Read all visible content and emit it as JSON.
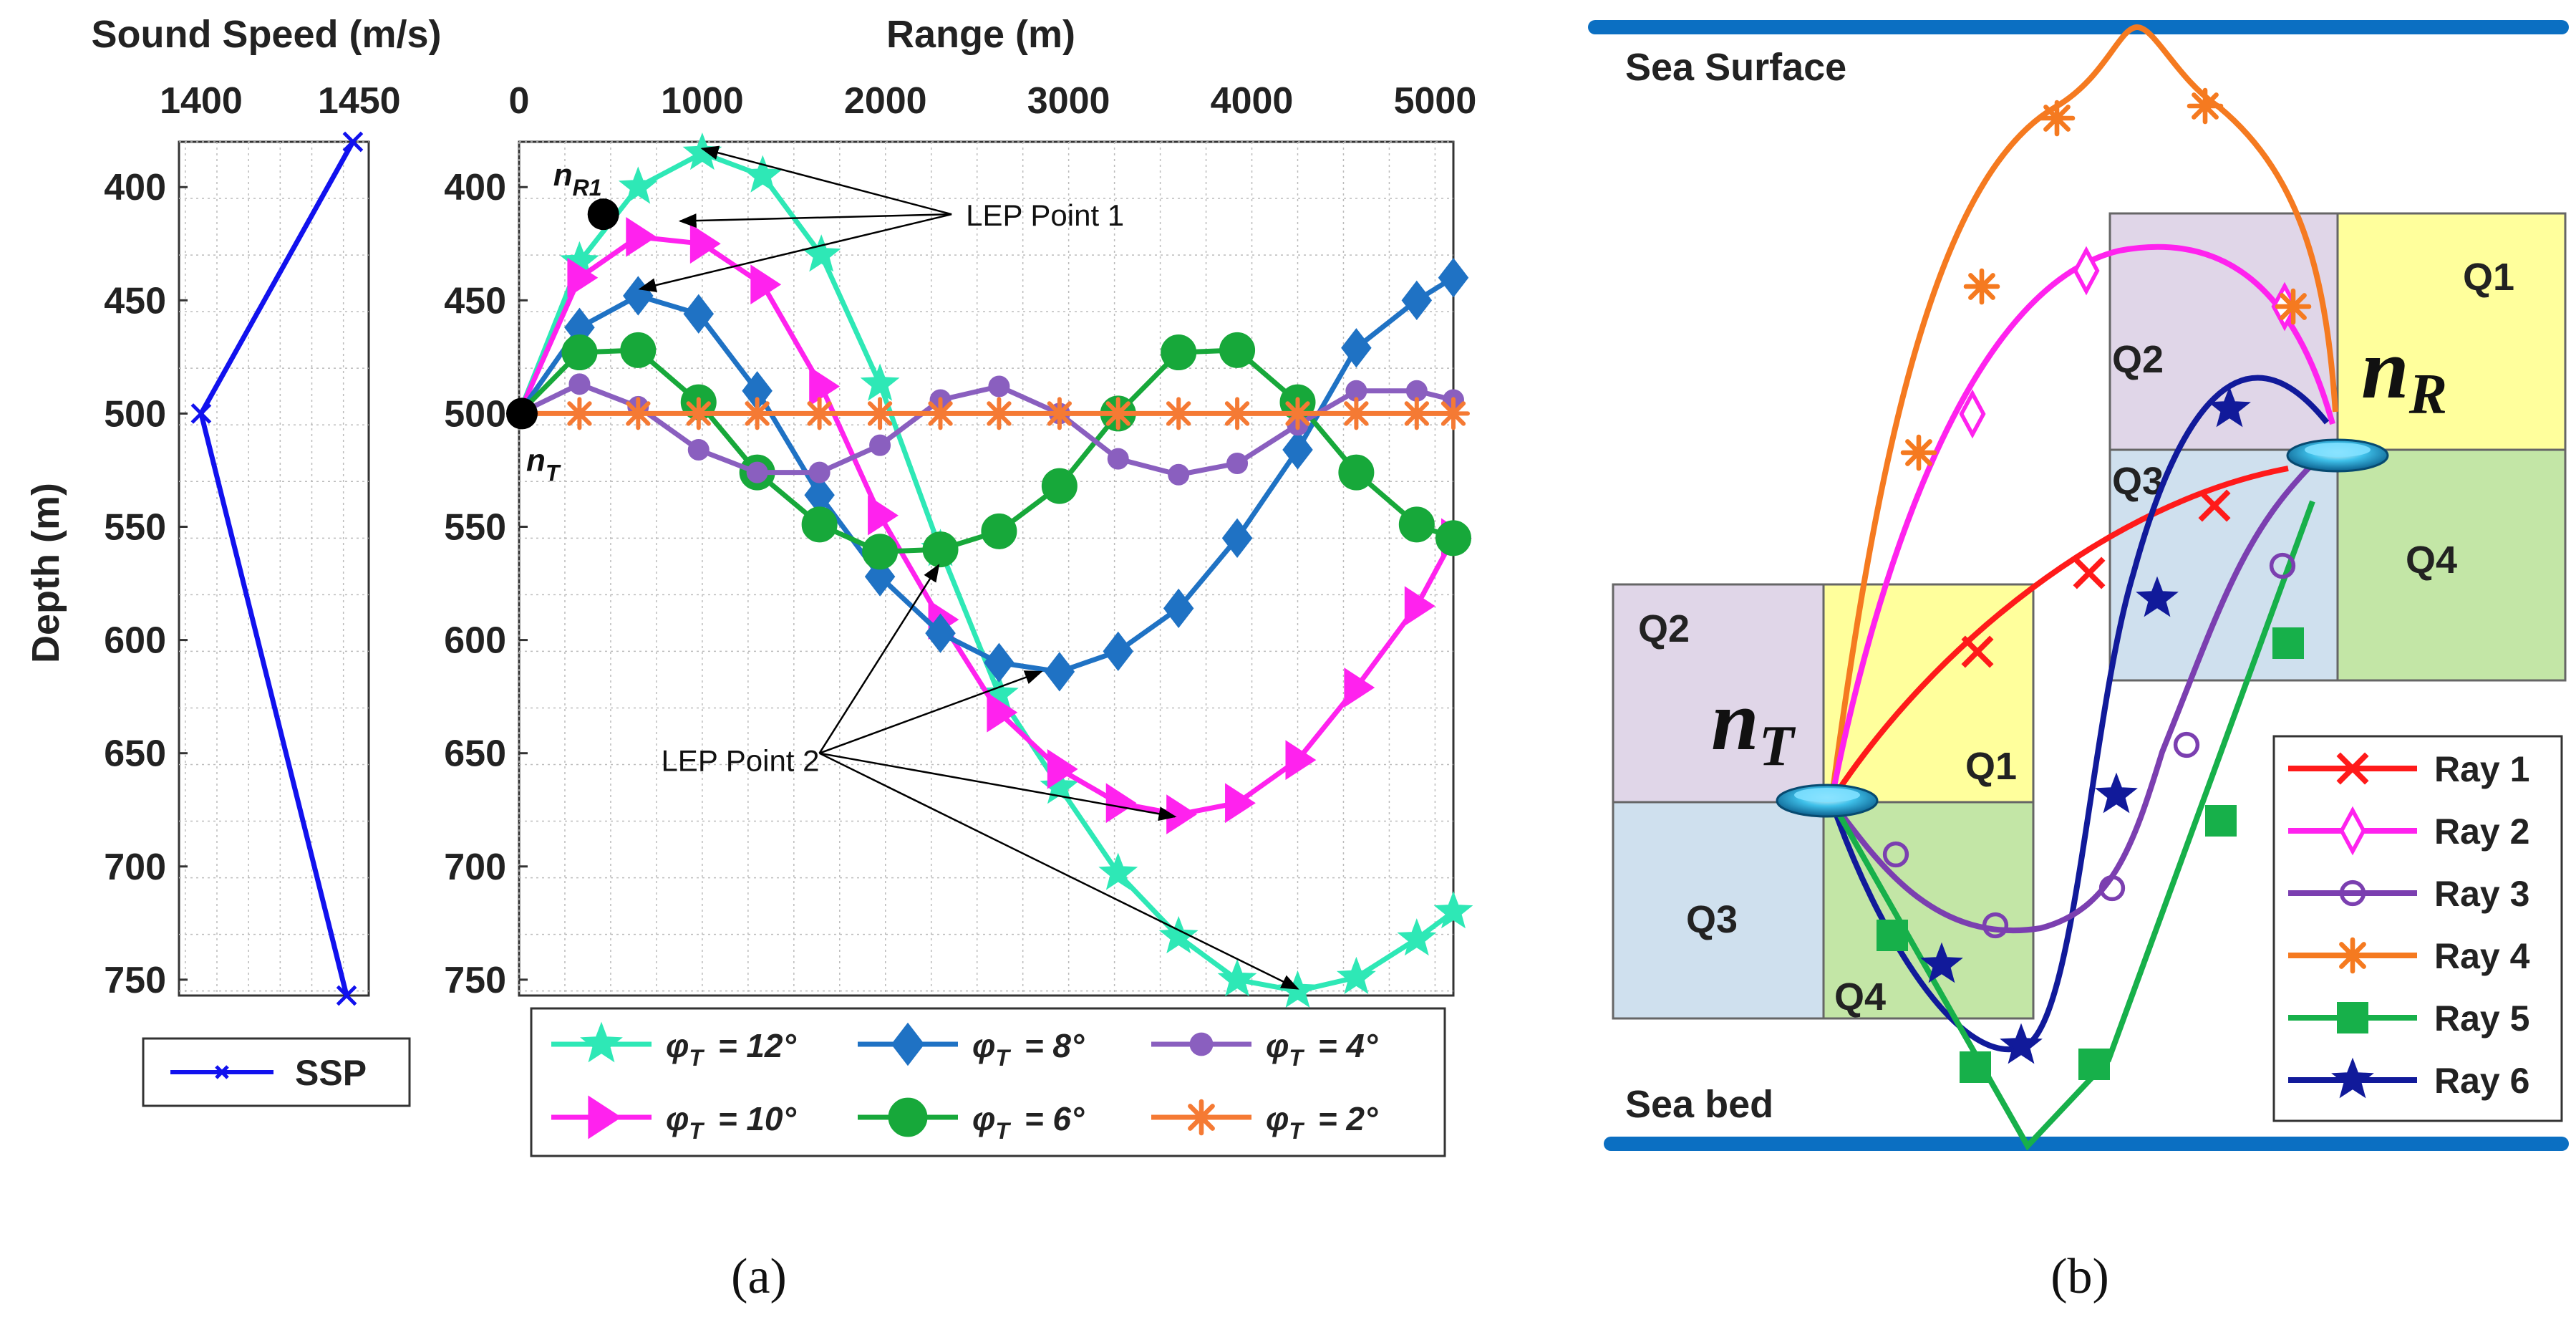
{
  "panel_a": {
    "caption": "(a)",
    "legend_label_prefix": "φ",
    "legend_label_sub": "T",
    "ssp_legend": "SSP",
    "chart_data": [
      {
        "type": "line",
        "name": "sound-speed-profile",
        "title": "Sound Speed (m/s)",
        "xlabel": "Sound Speed (m/s)",
        "ylabel": "Depth (m)",
        "xlim": [
          1393,
          1453
        ],
        "ylim": [
          757,
          380
        ],
        "x_ticks": [
          "1400",
          "1450"
        ],
        "y_ticks": [
          "400",
          "450",
          "500",
          "550",
          "600",
          "650",
          "700",
          "750"
        ],
        "grid": true,
        "legend": "below",
        "series": [
          {
            "name": "SSP",
            "color": "#1111ee",
            "marker": "x",
            "points": [
              [
                1448,
                380
              ],
              [
                1400,
                500
              ],
              [
                1446,
                757
              ]
            ]
          }
        ]
      },
      {
        "type": "line",
        "name": "ray-trajectories",
        "title": "Range (m)",
        "xlabel": "Range (m)",
        "ylabel": "Depth (m)",
        "xlim": [
          0,
          5100
        ],
        "ylim": [
          757,
          380
        ],
        "x_ticks": [
          "0",
          "1000",
          "2000",
          "3000",
          "4000",
          "5000"
        ],
        "y_ticks": [
          "400",
          "450",
          "500",
          "550",
          "600",
          "650",
          "700",
          "750"
        ],
        "grid": true,
        "legend": "below",
        "legend_text": [
          "= 12°",
          "= 8°",
          "= 4°",
          "= 10°",
          "= 6°",
          "= 2°"
        ],
        "series": [
          {
            "name": "= 12°",
            "angle_deg": 12,
            "color": "#2ee8b6",
            "marker": "star",
            "points": [
              [
                0,
                500
              ],
              [
                330,
                433
              ],
              [
                650,
                400
              ],
              [
                1000,
                385
              ],
              [
                1330,
                395
              ],
              [
                1650,
                430
              ],
              [
                1970,
                487
              ],
              [
                2300,
                560
              ],
              [
                2620,
                624
              ],
              [
                2950,
                665
              ],
              [
                3270,
                703
              ],
              [
                3600,
                731
              ],
              [
                3920,
                750
              ],
              [
                4250,
                755
              ],
              [
                4570,
                749
              ],
              [
                4900,
                732
              ],
              [
                5100,
                720
              ]
            ]
          },
          {
            "name": "= 8°",
            "angle_deg": 8,
            "color": "#1f72c4",
            "marker": "diamond",
            "points": [
              [
                0,
                500
              ],
              [
                330,
                462
              ],
              [
                650,
                448
              ],
              [
                980,
                456
              ],
              [
                1300,
                490
              ],
              [
                1640,
                536
              ],
              [
                1970,
                572
              ],
              [
                2300,
                597
              ],
              [
                2620,
                610
              ],
              [
                2950,
                614
              ],
              [
                3270,
                605
              ],
              [
                3600,
                586
              ],
              [
                3920,
                555
              ],
              [
                4250,
                516
              ],
              [
                4570,
                471
              ],
              [
                4900,
                450
              ],
              [
                5100,
                440
              ]
            ]
          },
          {
            "name": "= 4°",
            "angle_deg": 4,
            "color": "#8a5fbf",
            "marker": "circle",
            "points": [
              [
                0,
                500
              ],
              [
                330,
                487
              ],
              [
                650,
                497
              ],
              [
                980,
                516
              ],
              [
                1300,
                526
              ],
              [
                1640,
                526
              ],
              [
                1970,
                514
              ],
              [
                2300,
                494
              ],
              [
                2620,
                488
              ],
              [
                2950,
                500
              ],
              [
                3270,
                520
              ],
              [
                3600,
                527
              ],
              [
                3920,
                522
              ],
              [
                4250,
                505
              ],
              [
                4570,
                490
              ],
              [
                4900,
                490
              ],
              [
                5100,
                494
              ]
            ]
          },
          {
            "name": "= 10°",
            "angle_deg": 10,
            "color": "#ff22ee",
            "marker": "triangle-right",
            "points": [
              [
                0,
                500
              ],
              [
                330,
                440
              ],
              [
                650,
                422
              ],
              [
                1000,
                425
              ],
              [
                1330,
                443
              ],
              [
                1650,
                488
              ],
              [
                1970,
                545
              ],
              [
                2300,
                591
              ],
              [
                2620,
                632
              ],
              [
                2950,
                657
              ],
              [
                3270,
                672
              ],
              [
                3600,
                677
              ],
              [
                3920,
                672
              ],
              [
                4250,
                653
              ],
              [
                4570,
                621
              ],
              [
                4900,
                585
              ],
              [
                5100,
                555
              ]
            ]
          },
          {
            "name": "= 6°",
            "angle_deg": 6,
            "color": "#17a83a",
            "marker": "filled-circle",
            "points": [
              [
                0,
                500
              ],
              [
                330,
                473
              ],
              [
                650,
                472
              ],
              [
                980,
                495
              ],
              [
                1300,
                526
              ],
              [
                1640,
                549
              ],
              [
                1970,
                561
              ],
              [
                2300,
                560
              ],
              [
                2620,
                552
              ],
              [
                2950,
                532
              ],
              [
                3270,
                500
              ],
              [
                3600,
                473
              ],
              [
                3920,
                472
              ],
              [
                4250,
                495
              ],
              [
                4570,
                526
              ],
              [
                4900,
                549
              ],
              [
                5100,
                555
              ]
            ]
          },
          {
            "name": "= 2°",
            "angle_deg": 2,
            "color": "#f57a34",
            "marker": "asterisk",
            "points": [
              [
                0,
                500
              ],
              [
                330,
                500
              ],
              [
                650,
                500
              ],
              [
                980,
                500
              ],
              [
                1300,
                500
              ],
              [
                1640,
                500
              ],
              [
                1970,
                500
              ],
              [
                2300,
                500
              ],
              [
                2620,
                500
              ],
              [
                2950,
                500
              ],
              [
                3270,
                500
              ],
              [
                3600,
                500
              ],
              [
                3920,
                500
              ],
              [
                4250,
                500
              ],
              [
                4570,
                500
              ],
              [
                4900,
                500
              ],
              [
                5100,
                500
              ]
            ]
          }
        ],
        "annotations": {
          "lep1": {
            "text": "LEP Point 1",
            "x": 2400,
            "y": 412,
            "targets": [
              [
                1000,
                383
              ],
              [
                880,
                415
              ],
              [
                660,
                445
              ]
            ]
          },
          "lep2": {
            "text": "LEP Point 2",
            "x": 1620,
            "y": 650,
            "targets": [
              [
                2290,
                567
              ],
              [
                2850,
                614
              ],
              [
                3580,
                678
              ],
              [
                4250,
                754
              ]
            ]
          },
          "nT": {
            "label_main": "n",
            "label_sub": "T",
            "x": 0,
            "y": 500
          },
          "nR1": {
            "label_main": "n",
            "label_sub": "R1",
            "x": 460,
            "y": 412
          }
        }
      }
    ]
  },
  "panel_b": {
    "caption": "(b)",
    "sea_surface": "Sea Surface",
    "sea_bed": "Sea bed",
    "transmitter": {
      "main": "n",
      "sub": "T",
      "quadrants": [
        "Q1",
        "Q2",
        "Q3",
        "Q4"
      ]
    },
    "receiver": {
      "main": "n",
      "sub": "R",
      "quadrants": [
        "Q1",
        "Q2",
        "Q3",
        "Q4"
      ]
    },
    "rays": [
      {
        "label": "Ray 1",
        "color": "#ff1a1a",
        "marker": "x"
      },
      {
        "label": "Ray 2",
        "color": "#ff22ee",
        "marker": "open-diamond"
      },
      {
        "label": "Ray 3",
        "color": "#7b3fb0",
        "marker": "open-circle"
      },
      {
        "label": "Ray 4",
        "color": "#f57a20",
        "marker": "asterisk"
      },
      {
        "label": "Ray 5",
        "color": "#17b04a",
        "marker": "square"
      },
      {
        "label": "Ray 6",
        "color": "#111a9a",
        "marker": "star"
      }
    ],
    "colors": {
      "q1": "#ffff9c",
      "q2": "#e0d6e8",
      "q3": "#cfe0ee",
      "q4": "#c3e6a6",
      "sea_line": "#0b6fc2"
    }
  }
}
